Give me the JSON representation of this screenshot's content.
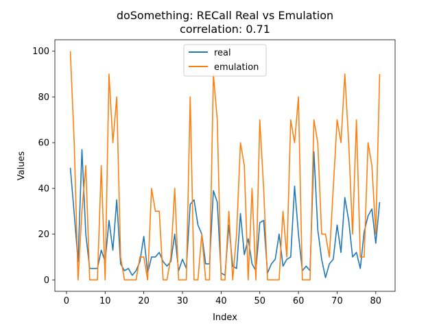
{
  "chart_data": {
    "type": "line",
    "title": "doSomething: RECall Real vs Emulation",
    "subtitle": "correlation: 0.71",
    "xlabel": "Index",
    "ylabel": "Values",
    "xlim": [
      -3,
      85
    ],
    "ylim": [
      -5,
      105
    ],
    "xticks": [
      0,
      10,
      20,
      30,
      40,
      50,
      60,
      70,
      80
    ],
    "yticks": [
      0,
      20,
      40,
      60,
      80,
      100
    ],
    "legend_position": "top-center",
    "grid": false,
    "x": [
      1,
      2,
      3,
      4,
      5,
      6,
      7,
      8,
      9,
      10,
      11,
      12,
      13,
      14,
      15,
      16,
      17,
      18,
      19,
      20,
      21,
      22,
      23,
      24,
      25,
      26,
      27,
      28,
      29,
      30,
      31,
      32,
      33,
      34,
      35,
      36,
      37,
      38,
      39,
      40,
      41,
      42,
      43,
      44,
      45,
      46,
      47,
      48,
      49,
      50,
      51,
      52,
      53,
      54,
      55,
      56,
      57,
      58,
      59,
      60,
      61,
      62,
      63,
      64,
      65,
      66,
      67,
      68,
      69,
      70,
      71,
      72,
      73,
      74,
      75,
      76,
      77,
      78,
      79,
      80,
      81
    ],
    "series": [
      {
        "name": "real",
        "color": "#1f77b4",
        "values": [
          49,
          29,
          8,
          57,
          20,
          5,
          5,
          5,
          13,
          8,
          26,
          13,
          35,
          7,
          4,
          5,
          2,
          4,
          8,
          19,
          3,
          10,
          10,
          12,
          8,
          6,
          8,
          20,
          4,
          9,
          5,
          33,
          35,
          24,
          20,
          7,
          7,
          39,
          34,
          3,
          2,
          24,
          6,
          5,
          29,
          11,
          18,
          7,
          4,
          25,
          26,
          3,
          7,
          9,
          20,
          6,
          9,
          10,
          41,
          20,
          4,
          6,
          4,
          56,
          22,
          9,
          1,
          7,
          9,
          24,
          12,
          36,
          26,
          10,
          12,
          5,
          21,
          28,
          31,
          16,
          34
        ]
      },
      {
        "name": "emulation",
        "color": "#ff7f0e",
        "values": [
          100,
          60,
          0,
          30,
          50,
          0,
          0,
          0,
          50,
          0,
          90,
          60,
          80,
          10,
          0,
          0,
          0,
          0,
          10,
          10,
          0,
          40,
          30,
          30,
          0,
          0,
          10,
          40,
          0,
          0,
          0,
          80,
          0,
          0,
          20,
          0,
          0,
          90,
          70,
          0,
          0,
          30,
          0,
          20,
          60,
          50,
          0,
          40,
          0,
          70,
          40,
          0,
          0,
          0,
          0,
          30,
          10,
          70,
          60,
          80,
          0,
          0,
          0,
          70,
          60,
          20,
          20,
          10,
          40,
          70,
          60,
          90,
          60,
          20,
          70,
          10,
          10,
          60,
          50,
          20,
          90
        ]
      }
    ]
  }
}
